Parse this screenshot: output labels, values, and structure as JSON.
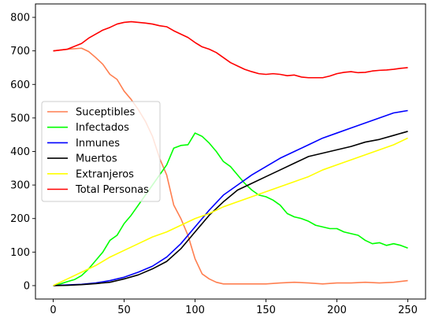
{
  "chart_data": {
    "type": "line",
    "title": "",
    "xlabel": "",
    "ylabel": "",
    "xlim": [
      -12.5,
      262.5
    ],
    "ylim": [
      -40,
      840
    ],
    "x_ticks": [
      0,
      50,
      100,
      150,
      200,
      250
    ],
    "y_ticks": [
      0,
      100,
      200,
      300,
      400,
      500,
      600,
      700,
      800
    ],
    "grid": false,
    "legend_position": "center-left",
    "series": [
      {
        "name": "Suceptibles",
        "color": "#ff7f50",
        "points": [
          [
            0,
            700
          ],
          [
            10,
            705
          ],
          [
            20,
            708
          ],
          [
            25,
            698
          ],
          [
            30,
            680
          ],
          [
            35,
            660
          ],
          [
            40,
            630
          ],
          [
            45,
            615
          ],
          [
            50,
            580
          ],
          [
            55,
            555
          ],
          [
            60,
            525
          ],
          [
            65,
            490
          ],
          [
            70,
            445
          ],
          [
            75,
            380
          ],
          [
            80,
            330
          ],
          [
            85,
            240
          ],
          [
            90,
            200
          ],
          [
            95,
            150
          ],
          [
            100,
            80
          ],
          [
            105,
            35
          ],
          [
            110,
            20
          ],
          [
            115,
            10
          ],
          [
            120,
            5
          ],
          [
            130,
            5
          ],
          [
            140,
            5
          ],
          [
            150,
            5
          ],
          [
            160,
            8
          ],
          [
            170,
            10
          ],
          [
            180,
            8
          ],
          [
            190,
            5
          ],
          [
            200,
            8
          ],
          [
            210,
            8
          ],
          [
            220,
            10
          ],
          [
            230,
            8
          ],
          [
            240,
            10
          ],
          [
            250,
            15
          ]
        ]
      },
      {
        "name": "Infectados",
        "color": "#00ff00",
        "points": [
          [
            0,
            0
          ],
          [
            5,
            5
          ],
          [
            10,
            12
          ],
          [
            15,
            18
          ],
          [
            20,
            30
          ],
          [
            25,
            50
          ],
          [
            30,
            75
          ],
          [
            35,
            100
          ],
          [
            40,
            135
          ],
          [
            45,
            150
          ],
          [
            50,
            185
          ],
          [
            55,
            210
          ],
          [
            60,
            240
          ],
          [
            65,
            270
          ],
          [
            70,
            300
          ],
          [
            75,
            330
          ],
          [
            80,
            360
          ],
          [
            85,
            410
          ],
          [
            90,
            418
          ],
          [
            95,
            420
          ],
          [
            100,
            455
          ],
          [
            105,
            445
          ],
          [
            110,
            425
          ],
          [
            115,
            400
          ],
          [
            120,
            370
          ],
          [
            125,
            355
          ],
          [
            130,
            330
          ],
          [
            135,
            305
          ],
          [
            140,
            285
          ],
          [
            145,
            270
          ],
          [
            150,
            265
          ],
          [
            155,
            255
          ],
          [
            160,
            240
          ],
          [
            165,
            215
          ],
          [
            170,
            205
          ],
          [
            175,
            200
          ],
          [
            180,
            192
          ],
          [
            185,
            180
          ],
          [
            190,
            175
          ],
          [
            195,
            170
          ],
          [
            200,
            170
          ],
          [
            205,
            160
          ],
          [
            210,
            155
          ],
          [
            215,
            150
          ],
          [
            220,
            135
          ],
          [
            225,
            125
          ],
          [
            230,
            128
          ],
          [
            235,
            120
          ],
          [
            240,
            125
          ],
          [
            245,
            120
          ],
          [
            250,
            112
          ]
        ]
      },
      {
        "name": "Inmunes",
        "color": "#0000ff",
        "points": [
          [
            0,
            0
          ],
          [
            10,
            2
          ],
          [
            20,
            4
          ],
          [
            30,
            8
          ],
          [
            40,
            15
          ],
          [
            50,
            25
          ],
          [
            60,
            40
          ],
          [
            70,
            58
          ],
          [
            80,
            85
          ],
          [
            90,
            125
          ],
          [
            100,
            175
          ],
          [
            110,
            225
          ],
          [
            120,
            270
          ],
          [
            130,
            300
          ],
          [
            140,
            330
          ],
          [
            150,
            355
          ],
          [
            160,
            380
          ],
          [
            170,
            400
          ],
          [
            180,
            420
          ],
          [
            190,
            440
          ],
          [
            200,
            455
          ],
          [
            210,
            470
          ],
          [
            220,
            485
          ],
          [
            230,
            500
          ],
          [
            240,
            515
          ],
          [
            250,
            522
          ]
        ]
      },
      {
        "name": "Muertos",
        "color": "#000000",
        "points": [
          [
            0,
            0
          ],
          [
            10,
            1
          ],
          [
            20,
            3
          ],
          [
            30,
            6
          ],
          [
            40,
            10
          ],
          [
            50,
            20
          ],
          [
            60,
            32
          ],
          [
            70,
            50
          ],
          [
            80,
            72
          ],
          [
            90,
            110
          ],
          [
            100,
            160
          ],
          [
            110,
            210
          ],
          [
            120,
            250
          ],
          [
            130,
            285
          ],
          [
            140,
            305
          ],
          [
            150,
            325
          ],
          [
            160,
            345
          ],
          [
            170,
            365
          ],
          [
            180,
            385
          ],
          [
            190,
            395
          ],
          [
            200,
            405
          ],
          [
            210,
            415
          ],
          [
            220,
            428
          ],
          [
            230,
            436
          ],
          [
            240,
            448
          ],
          [
            250,
            460
          ]
        ]
      },
      {
        "name": "Extranjeros",
        "color": "#ffff00",
        "points": [
          [
            0,
            0
          ],
          [
            10,
            20
          ],
          [
            20,
            40
          ],
          [
            30,
            60
          ],
          [
            40,
            85
          ],
          [
            50,
            105
          ],
          [
            60,
            125
          ],
          [
            70,
            145
          ],
          [
            80,
            160
          ],
          [
            90,
            180
          ],
          [
            100,
            200
          ],
          [
            110,
            215
          ],
          [
            120,
            235
          ],
          [
            130,
            250
          ],
          [
            140,
            265
          ],
          [
            150,
            280
          ],
          [
            160,
            295
          ],
          [
            170,
            310
          ],
          [
            180,
            325
          ],
          [
            190,
            345
          ],
          [
            200,
            360
          ],
          [
            210,
            375
          ],
          [
            220,
            390
          ],
          [
            230,
            405
          ],
          [
            240,
            420
          ],
          [
            250,
            440
          ]
        ]
      },
      {
        "name": "Total Personas",
        "color": "#ff0000",
        "points": [
          [
            0,
            700
          ],
          [
            10,
            705
          ],
          [
            20,
            722
          ],
          [
            25,
            738
          ],
          [
            30,
            750
          ],
          [
            35,
            762
          ],
          [
            40,
            770
          ],
          [
            45,
            780
          ],
          [
            50,
            785
          ],
          [
            55,
            787
          ],
          [
            60,
            785
          ],
          [
            65,
            783
          ],
          [
            70,
            780
          ],
          [
            75,
            775
          ],
          [
            80,
            772
          ],
          [
            85,
            760
          ],
          [
            90,
            750
          ],
          [
            95,
            740
          ],
          [
            100,
            725
          ],
          [
            105,
            712
          ],
          [
            110,
            705
          ],
          [
            115,
            695
          ],
          [
            120,
            680
          ],
          [
            125,
            665
          ],
          [
            130,
            655
          ],
          [
            135,
            645
          ],
          [
            140,
            638
          ],
          [
            145,
            632
          ],
          [
            150,
            630
          ],
          [
            155,
            632
          ],
          [
            160,
            630
          ],
          [
            165,
            626
          ],
          [
            170,
            628
          ],
          [
            175,
            622
          ],
          [
            180,
            620
          ],
          [
            185,
            620
          ],
          [
            190,
            620
          ],
          [
            195,
            625
          ],
          [
            200,
            632
          ],
          [
            205,
            636
          ],
          [
            210,
            638
          ],
          [
            215,
            635
          ],
          [
            220,
            636
          ],
          [
            225,
            640
          ],
          [
            230,
            642
          ],
          [
            235,
            643
          ],
          [
            240,
            645
          ],
          [
            245,
            648
          ],
          [
            250,
            650
          ]
        ]
      }
    ]
  }
}
